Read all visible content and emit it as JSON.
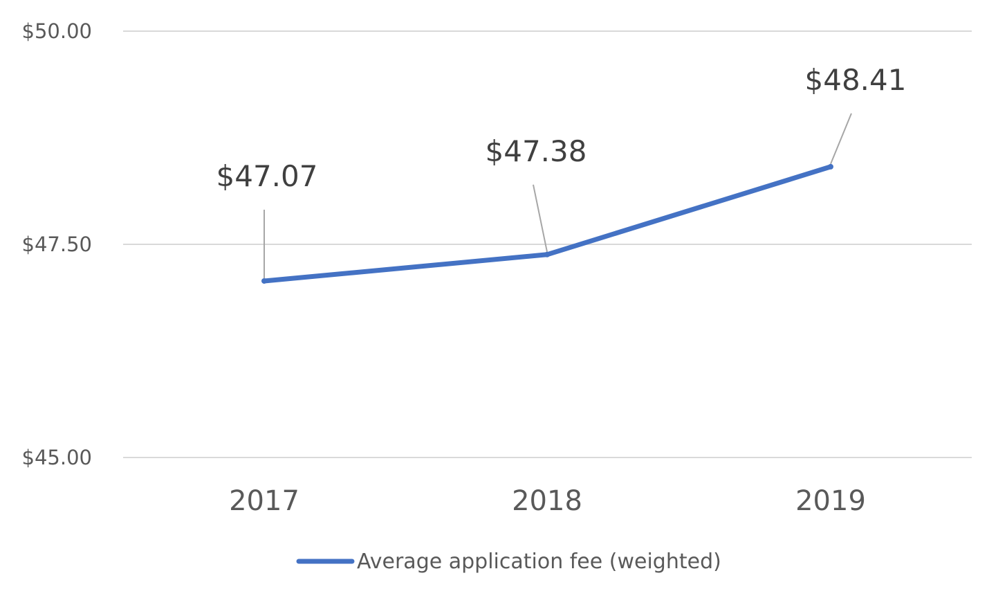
{
  "chart_data": {
    "type": "line",
    "categories": [
      "2017",
      "2018",
      "2019"
    ],
    "series": [
      {
        "name": "Average application fee (weighted)",
        "values": [
          47.07,
          47.38,
          48.41
        ],
        "color": "#4472C4"
      }
    ],
    "data_labels": [
      "$47.07",
      "$47.38",
      "$48.41"
    ],
    "y_ticks": [
      50.0,
      47.5,
      45.0
    ],
    "y_tick_labels": [
      "$50.00",
      "$47.50",
      "$45.00"
    ],
    "ylim": [
      45,
      50
    ],
    "grid": true,
    "legend_position": "bottom",
    "title": "",
    "xlabel": "",
    "ylabel": "",
    "gridline_color": "#d9d9d9",
    "leader_line_color": "#a6a6a6"
  }
}
